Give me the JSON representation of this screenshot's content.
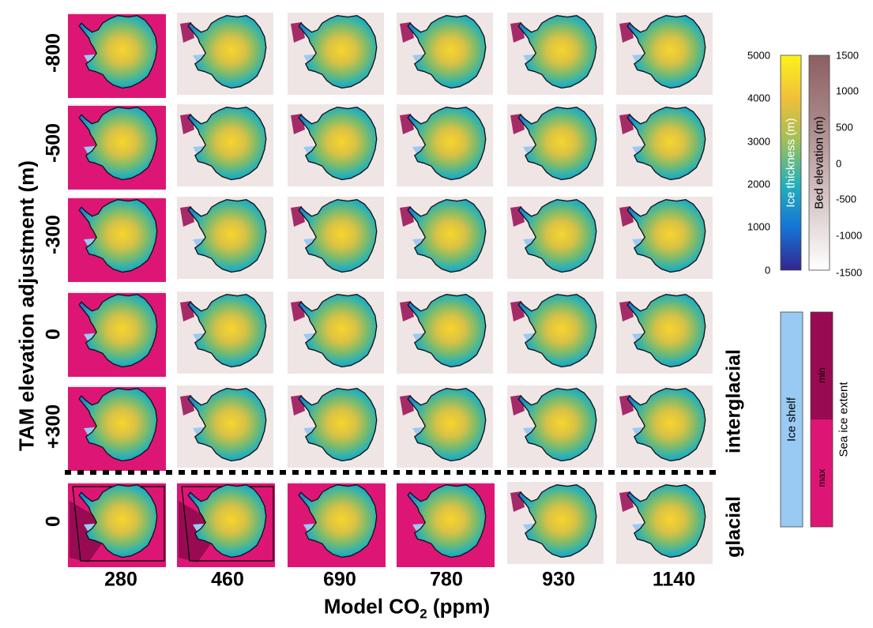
{
  "figure": {
    "ylabel": "TAM elevation adjustment (m)",
    "xlabel_main": "Model CO",
    "xlabel_sub": "2",
    "xlabel_unit": " (ppm)"
  },
  "rows": [
    {
      "label": "-800",
      "group": "interglacial"
    },
    {
      "label": "-500",
      "group": "interglacial"
    },
    {
      "label": "-300",
      "group": "interglacial"
    },
    {
      "label": "0",
      "group": "interglacial"
    },
    {
      "label": "+300",
      "group": "interglacial"
    },
    {
      "label": "0",
      "group": "glacial"
    }
  ],
  "columns": [
    "280",
    "460",
    "690",
    "780",
    "930",
    "1140"
  ],
  "groups": {
    "interglacial": "interglacial",
    "glacial": "glacial"
  },
  "panel_sea_ice": {
    "interglacial": [
      "max",
      "min",
      "min",
      "min",
      "min",
      "min"
    ],
    "glacial": [
      "max+min",
      "max+min",
      "max",
      "max",
      "min",
      "min"
    ]
  },
  "colorbars": {
    "ice": {
      "title": "Ice thickness (m)",
      "ticks": [
        "5000",
        "4000",
        "3000",
        "2000",
        "1000",
        "0"
      ],
      "range": [
        0,
        5000
      ],
      "colors": [
        "#fcf31b",
        "#f1bf3a",
        "#9fbf5a",
        "#25b0b8",
        "#1575d6",
        "#33268f"
      ]
    },
    "bed": {
      "title": "Bed elevation (m)",
      "ticks": [
        "1500",
        "1000",
        "500",
        "0",
        "-500",
        "-1000",
        "-1500"
      ],
      "range": [
        -1500,
        1500
      ],
      "colors": [
        "#8c5f62",
        "#a88688",
        "#c8b1b2",
        "#e6dcdc",
        "#ffffff"
      ]
    }
  },
  "legend": {
    "ice_shelf": "Ice shelf",
    "sea_ice_title": "Sea ice extent",
    "min_label": "min",
    "max_label": "max",
    "colors": {
      "ice_shelf": "#99caf3",
      "sea_ice_min": "#980b52",
      "sea_ice_max": "#dd1675"
    }
  }
}
